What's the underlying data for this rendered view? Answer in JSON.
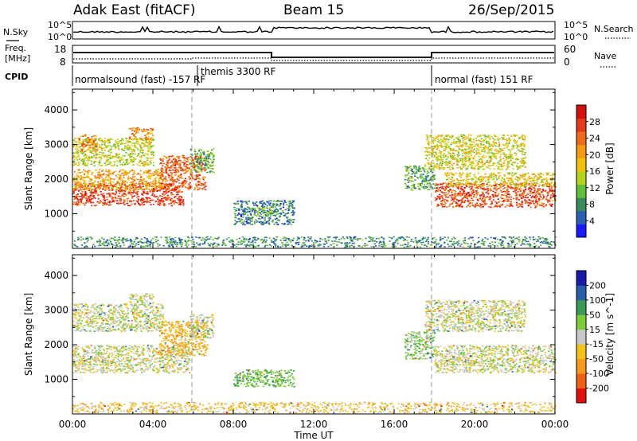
{
  "header": {
    "station": "Adak East (fitACF)",
    "beam": "Beam 15",
    "date": "26/Sep/2015"
  },
  "noise_panel": {
    "left_label": "N.Sky",
    "right_label": "N.Search",
    "left_ticks": [
      "10^5",
      "10^0"
    ],
    "right_ticks": [
      "10^5",
      "10^0"
    ]
  },
  "freq_panel": {
    "left_label_line1": "Freq.",
    "left_label_line2": "[MHz]",
    "right_label": "Nave",
    "left_ticks": [
      "18",
      "8"
    ],
    "right_ticks": [
      "60",
      "0"
    ]
  },
  "cpid_panel": {
    "label": "CPID",
    "segments": [
      {
        "name": "normalsound (fast) -157 RF",
        "start_hour": 0
      },
      {
        "name": "themis 3300 RF",
        "start_hour": 6.2
      },
      {
        "name": "normal (fast) 151 RF",
        "start_hour": 18
      }
    ]
  },
  "x_axis": {
    "label": "Time UT",
    "ticks": [
      "00:00",
      "04:00",
      "08:00",
      "12:00",
      "16:00",
      "20:00",
      "00:00"
    ]
  },
  "colors": {
    "power": [
      "#1a1aff",
      "#2b5fb0",
      "#3a8a5a",
      "#5fbf3a",
      "#b6d21e",
      "#f2c20a",
      "#f59a14",
      "#ee6a1c",
      "#e23a1a",
      "#d41010"
    ],
    "velocity": [
      "#e01010",
      "#f06018",
      "#f59a1a",
      "#f2c21a",
      "#c8c8c8",
      "#7ccc3a",
      "#3a9a55",
      "#2860a8",
      "#1a1aa8"
    ]
  },
  "chart_data": [
    {
      "type": "heatmap",
      "name": "Power",
      "ylabel": "Slant Range [km]",
      "yticks": [
        1000,
        2000,
        3000,
        4000
      ],
      "ylim": [
        0,
        4600
      ],
      "xlim": [
        0,
        24
      ],
      "colorbar_label": "Power [dB]",
      "colorbar_ticks": [
        4,
        8,
        12,
        16,
        20,
        24,
        28
      ],
      "colorbar_range": [
        0,
        32
      ],
      "regions": [
        {
          "t0": 0.0,
          "t1": 5.5,
          "r0": 1250,
          "r1": 1900,
          "level": 27
        },
        {
          "t0": 0.0,
          "t1": 4.5,
          "r0": 1700,
          "r1": 2300,
          "level": 20
        },
        {
          "t0": 0.0,
          "t1": 4.0,
          "r0": 2400,
          "r1": 3200,
          "level": 15
        },
        {
          "t0": 0.3,
          "t1": 1.2,
          "r0": 2800,
          "r1": 3300,
          "level": 22
        },
        {
          "t0": 2.8,
          "t1": 4.0,
          "r0": 3150,
          "r1": 3500,
          "level": 22
        },
        {
          "t0": 4.3,
          "t1": 6.6,
          "r0": 1700,
          "r1": 2700,
          "level": 25
        },
        {
          "t0": 5.8,
          "t1": 7.0,
          "r0": 2200,
          "r1": 2900,
          "level": 10
        },
        {
          "t0": 8.0,
          "t1": 11.0,
          "r0": 700,
          "r1": 1400,
          "level": 7
        },
        {
          "t0": 9.0,
          "t1": 10.0,
          "r0": 950,
          "r1": 1200,
          "level": 12
        },
        {
          "t0": 16.5,
          "t1": 18.0,
          "r0": 1700,
          "r1": 2400,
          "level": 10
        },
        {
          "t0": 18.0,
          "t1": 24.0,
          "r0": 1200,
          "r1": 1900,
          "level": 26
        },
        {
          "t0": 18.5,
          "t1": 24.0,
          "r0": 1800,
          "r1": 2200,
          "level": 17
        },
        {
          "t0": 17.5,
          "t1": 22.5,
          "r0": 2300,
          "r1": 3300,
          "level": 16
        },
        {
          "t0": 0.0,
          "t1": 24.0,
          "r0": 50,
          "r1": 350,
          "level": 8
        }
      ]
    },
    {
      "type": "heatmap",
      "name": "Velocity",
      "ylabel": "Slant Range [km]",
      "yticks": [
        1000,
        2000,
        3000,
        4000
      ],
      "ylim": [
        0,
        4600
      ],
      "xlim": [
        0,
        24
      ],
      "colorbar_label": "Velocity [m s^-1]",
      "colorbar_ticks": [
        -200,
        -100,
        -50,
        -15,
        15,
        50,
        100,
        200
      ],
      "regions": [
        {
          "t0": 0.0,
          "t1": 5.8,
          "r0": 1200,
          "r1": 2000,
          "level": 0
        },
        {
          "t0": 0.0,
          "t1": 4.5,
          "r0": 2400,
          "r1": 3200,
          "level": 0
        },
        {
          "t0": 2.8,
          "t1": 4.0,
          "r0": 3150,
          "r1": 3500,
          "level": 0
        },
        {
          "t0": 4.3,
          "t1": 6.7,
          "r0": 1700,
          "r1": 2700,
          "level": -40
        },
        {
          "t0": 5.8,
          "t1": 7.0,
          "r0": 2200,
          "r1": 2900,
          "level": 0
        },
        {
          "t0": 8.0,
          "t1": 11.0,
          "r0": 800,
          "r1": 1300,
          "level": 40
        },
        {
          "t0": 16.5,
          "t1": 18.0,
          "r0": 1600,
          "r1": 2400,
          "level": 30
        },
        {
          "t0": 18.0,
          "t1": 24.0,
          "r0": 1200,
          "r1": 2000,
          "level": 0
        },
        {
          "t0": 17.5,
          "t1": 22.5,
          "r0": 2400,
          "r1": 3300,
          "level": 0
        },
        {
          "t0": 0.0,
          "t1": 24.0,
          "r0": 50,
          "r1": 350,
          "level": -30
        }
      ]
    }
  ]
}
